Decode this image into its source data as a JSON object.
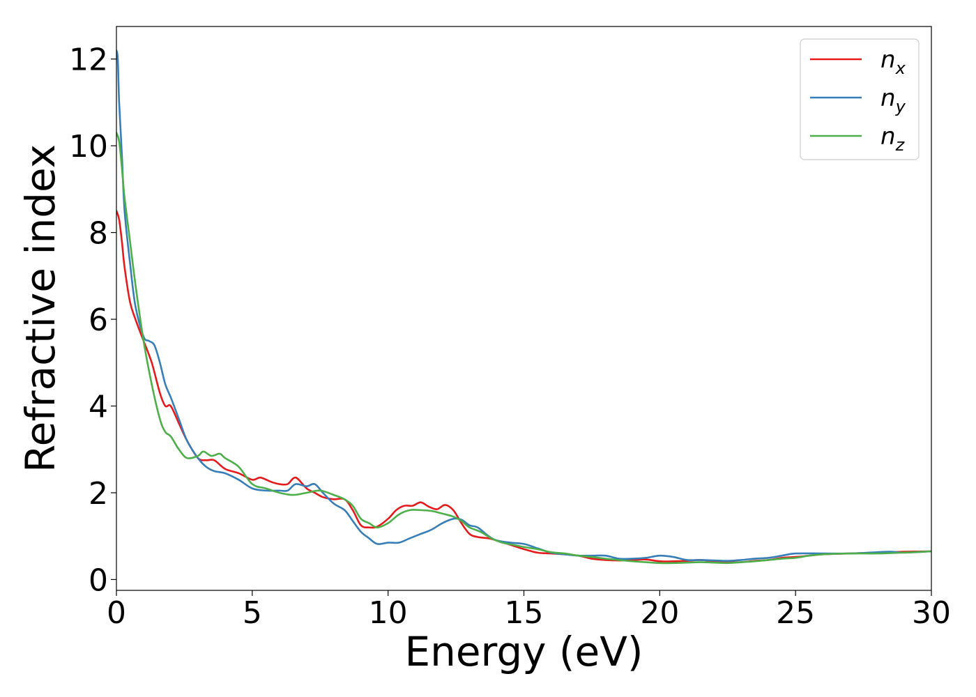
{
  "chart_data": {
    "type": "line",
    "title": "",
    "xlabel": "Energy (eV)",
    "ylabel": "Refractive index",
    "xlim": [
      0,
      30
    ],
    "ylim": [
      -0.25,
      12.75
    ],
    "xticks": [
      0,
      5,
      10,
      15,
      20,
      25,
      30
    ],
    "yticks": [
      0,
      2,
      4,
      6,
      8,
      10,
      12
    ],
    "grid": false,
    "legend_position": "top-right",
    "series": [
      {
        "name": "n_x",
        "label_base": "n",
        "label_sub": "x",
        "color": "#e41a1c",
        "x": [
          0,
          0.1,
          0.2,
          0.3,
          0.5,
          0.7,
          1.0,
          1.3,
          1.6,
          1.8,
          2.0,
          2.3,
          2.6,
          3.0,
          3.3,
          3.6,
          4.0,
          4.5,
          5.0,
          5.3,
          5.7,
          6.0,
          6.3,
          6.6,
          7.0,
          7.3,
          7.6,
          8.0,
          8.4,
          8.7,
          9.0,
          9.3,
          9.6,
          10.0,
          10.3,
          10.6,
          10.9,
          11.2,
          11.5,
          11.8,
          12.1,
          12.4,
          12.7,
          13.0,
          13.3,
          13.7,
          14.0,
          14.5,
          15.0,
          15.5,
          16.0,
          16.5,
          17.0,
          17.5,
          18.0,
          18.5,
          19.0,
          19.5,
          20.0,
          20.5,
          21.0,
          21.5,
          22.0,
          22.5,
          23.0,
          23.5,
          24.0,
          24.5,
          25.0,
          25.5,
          26.0,
          27.0,
          28.0,
          29.0,
          30.0
        ],
        "y": [
          8.5,
          8.3,
          7.8,
          7.2,
          6.4,
          6.0,
          5.5,
          5.0,
          4.3,
          4.0,
          4.0,
          3.6,
          3.2,
          2.8,
          2.75,
          2.75,
          2.55,
          2.45,
          2.3,
          2.35,
          2.25,
          2.2,
          2.2,
          2.35,
          2.1,
          2.0,
          1.9,
          1.85,
          1.85,
          1.6,
          1.25,
          1.2,
          1.22,
          1.4,
          1.6,
          1.7,
          1.7,
          1.78,
          1.68,
          1.62,
          1.72,
          1.6,
          1.3,
          1.05,
          0.98,
          0.95,
          0.9,
          0.8,
          0.7,
          0.62,
          0.6,
          0.58,
          0.55,
          0.48,
          0.45,
          0.44,
          0.45,
          0.46,
          0.42,
          0.42,
          0.43,
          0.45,
          0.42,
          0.4,
          0.4,
          0.43,
          0.45,
          0.5,
          0.52,
          0.55,
          0.58,
          0.6,
          0.62,
          0.64,
          0.65
        ]
      },
      {
        "name": "n_y",
        "label_base": "n",
        "label_sub": "y",
        "color": "#377eb8",
        "x": [
          0,
          0.05,
          0.1,
          0.2,
          0.3,
          0.5,
          0.7,
          1.0,
          1.2,
          1.4,
          1.6,
          1.8,
          2.0,
          2.3,
          2.6,
          3.0,
          3.3,
          3.6,
          4.0,
          4.5,
          5.0,
          5.5,
          6.0,
          6.3,
          6.6,
          7.0,
          7.3,
          7.6,
          8.0,
          8.4,
          8.7,
          9.0,
          9.3,
          9.6,
          10.0,
          10.4,
          10.8,
          11.2,
          11.6,
          12.0,
          12.4,
          12.7,
          13.0,
          13.3,
          13.7,
          14.0,
          14.5,
          15.0,
          15.5,
          16.0,
          16.5,
          17.0,
          17.5,
          18.0,
          18.5,
          19.0,
          19.5,
          20.0,
          20.5,
          21.0,
          21.5,
          22.0,
          22.5,
          23.0,
          23.5,
          24.0,
          24.5,
          25.0,
          26.0,
          27.0,
          28.0,
          28.5,
          29.0,
          30.0
        ],
        "y": [
          12.2,
          12.0,
          11.0,
          9.8,
          8.5,
          7.3,
          6.3,
          5.6,
          5.5,
          5.4,
          5.0,
          4.5,
          4.2,
          3.7,
          3.2,
          2.8,
          2.6,
          2.5,
          2.45,
          2.3,
          2.1,
          2.05,
          2.05,
          2.05,
          2.2,
          2.15,
          2.2,
          2.0,
          1.75,
          1.6,
          1.35,
          1.1,
          0.95,
          0.82,
          0.85,
          0.85,
          0.95,
          1.05,
          1.15,
          1.3,
          1.4,
          1.38,
          1.25,
          1.2,
          1.0,
          0.9,
          0.85,
          0.82,
          0.72,
          0.62,
          0.58,
          0.55,
          0.55,
          0.55,
          0.48,
          0.48,
          0.5,
          0.55,
          0.52,
          0.45,
          0.45,
          0.44,
          0.43,
          0.45,
          0.48,
          0.5,
          0.55,
          0.6,
          0.6,
          0.6,
          0.63,
          0.64,
          0.62,
          0.65
        ]
      },
      {
        "name": "n_z",
        "label_base": "n",
        "label_sub": "z",
        "color": "#4daf4a",
        "x": [
          0,
          0.1,
          0.2,
          0.3,
          0.5,
          0.7,
          1.0,
          1.3,
          1.6,
          1.8,
          2.0,
          2.3,
          2.6,
          3.0,
          3.2,
          3.5,
          3.8,
          4.0,
          4.5,
          5.0,
          5.5,
          6.0,
          6.5,
          7.0,
          7.5,
          8.0,
          8.4,
          8.7,
          9.0,
          9.3,
          9.6,
          10.0,
          10.4,
          10.8,
          11.2,
          11.6,
          12.0,
          12.4,
          12.7,
          13.0,
          13.4,
          13.8,
          14.2,
          14.6,
          15.0,
          15.5,
          16.0,
          16.5,
          17.0,
          17.5,
          18.0,
          18.5,
          19.0,
          19.5,
          20.0,
          20.5,
          21.0,
          21.5,
          22.0,
          22.5,
          23.0,
          23.5,
          24.0,
          24.5,
          25.0,
          25.5,
          26.0,
          27.0,
          28.0,
          29.0,
          30.0
        ],
        "y": [
          10.3,
          10.1,
          9.5,
          8.8,
          7.8,
          6.8,
          5.5,
          4.5,
          3.7,
          3.4,
          3.3,
          3.0,
          2.8,
          2.85,
          2.95,
          2.85,
          2.9,
          2.8,
          2.6,
          2.2,
          2.1,
          2.0,
          1.95,
          2.0,
          2.05,
          1.95,
          1.85,
          1.7,
          1.4,
          1.3,
          1.2,
          1.3,
          1.5,
          1.6,
          1.6,
          1.58,
          1.52,
          1.45,
          1.35,
          1.2,
          1.1,
          0.95,
          0.85,
          0.8,
          0.75,
          0.7,
          0.63,
          0.6,
          0.55,
          0.52,
          0.48,
          0.45,
          0.42,
          0.4,
          0.38,
          0.38,
          0.39,
          0.4,
          0.39,
          0.38,
          0.4,
          0.42,
          0.45,
          0.48,
          0.5,
          0.55,
          0.58,
          0.6,
          0.6,
          0.62,
          0.65
        ]
      }
    ]
  }
}
